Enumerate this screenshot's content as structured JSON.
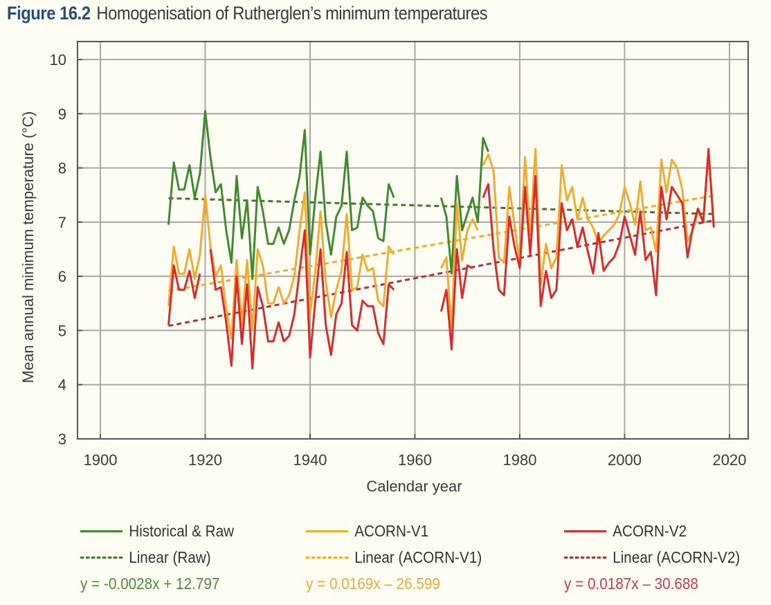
{
  "header": {
    "figure_label": "Figure 16.2",
    "title": "Homogenisation of Rutherglen’s minimum temperatures"
  },
  "chart_data": {
    "type": "line",
    "title": "Homogenisation of Rutherglen’s minimum temperatures",
    "xlabel": "Calendar year",
    "ylabel": "Mean annual minimum temperature (°C)",
    "xlim": [
      1895,
      2024
    ],
    "ylim": [
      3,
      10.3
    ],
    "xticks": [
      1900,
      1920,
      1940,
      1960,
      1980,
      2000,
      2020
    ],
    "yticks": [
      3,
      4,
      5,
      6,
      7,
      8,
      9,
      10
    ],
    "grid": true,
    "legend_position": "bottom",
    "series": [
      {
        "name": "Historical & Raw",
        "color": "#3f8a2e",
        "style": "solid",
        "segments": [
          {
            "x": [
              1913,
              1914,
              1915,
              1916,
              1917,
              1918,
              1919,
              1920,
              1921,
              1922,
              1923,
              1924,
              1925,
              1926,
              1927,
              1928,
              1929,
              1930,
              1931,
              1932,
              1933,
              1934,
              1935,
              1936,
              1937,
              1938,
              1939,
              1940,
              1941,
              1942,
              1943,
              1944,
              1945,
              1946,
              1947,
              1948,
              1949,
              1950,
              1951,
              1952,
              1953,
              1954,
              1955,
              1956
            ],
            "y": [
              6.95,
              8.1,
              7.6,
              7.6,
              8.05,
              7.45,
              7.9,
              9.05,
              8.2,
              7.55,
              7.7,
              6.85,
              6.25,
              7.85,
              6.7,
              7.4,
              5.95,
              7.65,
              7.2,
              6.6,
              6.6,
              6.9,
              6.6,
              6.85,
              7.4,
              7.85,
              8.7,
              6.4,
              7.45,
              8.3,
              7.0,
              6.4,
              7.1,
              7.3,
              8.3,
              6.85,
              6.9,
              7.45,
              7.3,
              7.2,
              6.7,
              6.65,
              7.7,
              7.45
            ]
          },
          {
            "x": [
              1965,
              1966,
              1967,
              1968,
              1969,
              1970,
              1971,
              1972,
              1973,
              1974
            ],
            "y": [
              7.45,
              7.1,
              6.05,
              7.85,
              6.85,
              7.15,
              7.45,
              7.0,
              8.55,
              8.3
            ]
          }
        ]
      },
      {
        "name": "ACORN-V1",
        "color": "#f2ab2e",
        "style": "solid",
        "segments": [
          {
            "x": [
              1913,
              1914,
              1915,
              1916,
              1917,
              1918,
              1919,
              1920,
              1921,
              1922,
              1923,
              1924,
              1925,
              1926,
              1927,
              1928,
              1929,
              1930,
              1931,
              1932,
              1933,
              1934,
              1935,
              1936,
              1937,
              1938,
              1939,
              1940,
              1941,
              1942,
              1943,
              1944,
              1945,
              1946,
              1947,
              1948,
              1949,
              1950,
              1951,
              1952,
              1953,
              1954,
              1955,
              1956
            ],
            "y": [
              5.45,
              6.55,
              6.05,
              6.05,
              6.5,
              5.95,
              6.4,
              7.5,
              6.55,
              6.0,
              6.2,
              5.4,
              4.85,
              6.3,
              5.1,
              6.3,
              5.0,
              6.5,
              6.2,
              5.5,
              5.5,
              5.8,
              5.5,
              5.65,
              6.0,
              6.85,
              7.55,
              5.3,
              6.1,
              7.2,
              5.9,
              5.25,
              5.75,
              6.1,
              7.15,
              5.75,
              5.8,
              6.4,
              6.1,
              6.15,
              5.55,
              5.45,
              6.55,
              6.4
            ]
          },
          {
            "x": [
              1965,
              1966,
              1967,
              1968,
              1969,
              1970,
              1971,
              1972
            ],
            "y": [
              6.15,
              6.35,
              5.0,
              7.35,
              6.3,
              6.85,
              7.05,
              6.85
            ]
          },
          {
            "x": [
              1973,
              1974,
              1975,
              1976,
              1977,
              1978,
              1979,
              1980,
              1981,
              1982,
              1983,
              1984,
              1985,
              1986,
              1987,
              1988,
              1989,
              1990,
              1991,
              1992,
              1993,
              1994,
              1995,
              1996,
              1997,
              1998,
              1999,
              2000,
              2001,
              2002,
              2003,
              2004,
              2005,
              2006,
              2007,
              2008,
              2009,
              2010,
              2011,
              2012,
              2013,
              2014,
              2015,
              2016,
              2017
            ],
            "y": [
              8.05,
              8.25,
              7.95,
              6.35,
              6.25,
              7.65,
              6.95,
              6.25,
              8.2,
              6.75,
              8.35,
              5.85,
              6.6,
              6.15,
              6.35,
              8.05,
              7.4,
              7.65,
              7.05,
              7.45,
              7.05,
              6.9,
              6.6,
              6.75,
              6.85,
              6.95,
              7.15,
              7.65,
              7.35,
              6.95,
              7.75,
              6.85,
              6.9,
              6.45,
              8.15,
              7.55,
              8.15,
              8.0,
              7.6,
              6.65,
              6.85,
              7.2,
              7.0,
              8.3,
              6.95
            ]
          }
        ]
      },
      {
        "name": "ACORN-V2",
        "color": "#dc2a2a",
        "style": "solid",
        "segments": [
          {
            "x": [
              1913,
              1914,
              1915,
              1916,
              1917,
              1918,
              1919
            ],
            "y": [
              5.1,
              6.2,
              5.75,
              5.75,
              6.1,
              5.6,
              6.05
            ]
          },
          {
            "x": [
              1921,
              1922,
              1923,
              1924,
              1925,
              1926,
              1927,
              1928,
              1929,
              1930,
              1931,
              1932,
              1933,
              1934,
              1935,
              1936,
              1937,
              1938,
              1939,
              1940,
              1941,
              1942,
              1943,
              1944,
              1945,
              1946,
              1947,
              1948,
              1949,
              1950,
              1951,
              1952,
              1953,
              1954,
              1955,
              1956
            ],
            "y": [
              6.5,
              5.75,
              5.8,
              5.15,
              4.35,
              6.0,
              4.75,
              5.85,
              4.3,
              5.8,
              5.45,
              4.8,
              4.8,
              5.15,
              4.8,
              4.9,
              5.3,
              6.1,
              6.85,
              4.5,
              5.55,
              6.5,
              5.1,
              4.55,
              5.3,
              5.5,
              6.45,
              5.1,
              5.0,
              5.55,
              5.45,
              5.45,
              4.95,
              4.75,
              5.85,
              5.75
            ]
          },
          {
            "x": [
              1965,
              1966,
              1967,
              1968,
              1969,
              1970,
              1971
            ],
            "y": [
              5.35,
              5.75,
              4.65,
              6.5,
              5.6,
              6.2,
              6.15
            ]
          },
          {
            "x": [
              1973,
              1974,
              1975,
              1976,
              1977,
              1978,
              1979,
              1980,
              1981,
              1982,
              1983,
              1984,
              1985,
              1986,
              1987,
              1988,
              1989,
              1990,
              1991,
              1992,
              1993,
              1994,
              1995,
              1996,
              1997,
              1998,
              1999,
              2000,
              2001,
              2002,
              2003,
              2004,
              2005,
              2006,
              2007,
              2008,
              2009,
              2010,
              2011,
              2012,
              2013,
              2014,
              2015,
              2016,
              2017
            ],
            "y": [
              7.45,
              7.7,
              6.5,
              5.75,
              5.65,
              7.1,
              6.55,
              6.15,
              7.65,
              6.4,
              7.85,
              5.45,
              6.1,
              5.6,
              5.75,
              7.35,
              6.85,
              7.05,
              6.55,
              6.9,
              6.45,
              6.05,
              6.8,
              6.1,
              6.25,
              6.35,
              6.6,
              7.1,
              6.75,
              6.4,
              7.2,
              6.3,
              6.45,
              5.65,
              7.65,
              7.05,
              7.65,
              7.5,
              7.35,
              6.35,
              6.9,
              7.25,
              7.0,
              8.35,
              6.9
            ]
          }
        ]
      }
    ],
    "trendlines": [
      {
        "name": "Linear (Raw)",
        "color": "#3f7a2a",
        "slope": -0.0028,
        "intercept": 12.797,
        "x_range": [
          1913,
          2017
        ],
        "equation": "y = -0.0028x + 12.797"
      },
      {
        "name": "Linear (ACORN-V1)",
        "color": "#f2ab2e",
        "slope": 0.0169,
        "intercept": -26.599,
        "x_range": [
          1913,
          2017
        ],
        "equation": "y = 0.0169x – 26.599"
      },
      {
        "name": "Linear (ACORN-V2)",
        "color": "#b0303a",
        "slope": 0.0187,
        "intercept": -30.688,
        "x_range": [
          1913,
          2017
        ],
        "equation": "y = 0.0187x – 30.688"
      }
    ]
  },
  "legend": {
    "columns": [
      {
        "series_label": "Historical & Raw",
        "trend_label": "Linear (Raw)",
        "equation": "y = -0.0028x + 12.797",
        "color": "#3f8a2e",
        "trend_color": "#3f7a2a",
        "eq_color": "#4a8f3a"
      },
      {
        "series_label": "ACORN-V1",
        "trend_label": "Linear (ACORN-V1)",
        "equation": "y = 0.0169x – 26.599",
        "color": "#f2ab2e",
        "trend_color": "#f2ab2e",
        "eq_color": "#eeaa33"
      },
      {
        "series_label": "ACORN-V2",
        "trend_label": "Linear (ACORN-V2)",
        "equation": "y = 0.0187x – 30.688",
        "color": "#dc2a2a",
        "trend_color": "#b0303a",
        "eq_color": "#d03a4a"
      }
    ]
  }
}
